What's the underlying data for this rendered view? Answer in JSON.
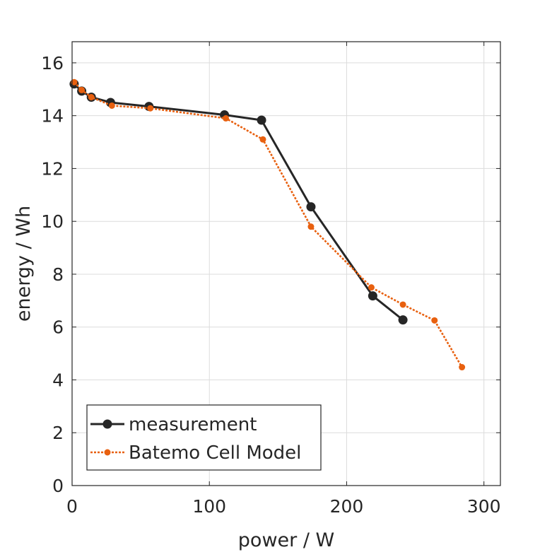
{
  "chart_data": {
    "type": "line",
    "title": "",
    "xlabel": "power / W",
    "ylabel": "energy / Wh",
    "xlim": [
      0,
      312
    ],
    "ylim": [
      0,
      16.8
    ],
    "xticks": [
      0,
      100,
      200,
      300
    ],
    "yticks": [
      0,
      2,
      4,
      6,
      8,
      10,
      12,
      14,
      16
    ],
    "grid": true,
    "legend_position": "bottom-left",
    "series": [
      {
        "name": "measurement",
        "color": "#262626",
        "line_style": "solid",
        "marker": "large-circle",
        "x": [
          1.5,
          7,
          14,
          28,
          56,
          111,
          138,
          174,
          219,
          241
        ],
        "y": [
          15.2,
          14.93,
          14.7,
          14.5,
          14.35,
          14.03,
          13.83,
          10.55,
          7.18,
          6.27
        ]
      },
      {
        "name": "Batemo Cell Model",
        "color": "#e8600f",
        "line_style": "dotted",
        "marker": "small-circle",
        "x": [
          1.5,
          7,
          14,
          29,
          57,
          112,
          139,
          174,
          218,
          241,
          264,
          284
        ],
        "y": [
          15.27,
          14.97,
          14.7,
          14.38,
          14.28,
          13.9,
          13.1,
          9.8,
          7.5,
          6.85,
          6.25,
          4.48
        ]
      }
    ]
  }
}
